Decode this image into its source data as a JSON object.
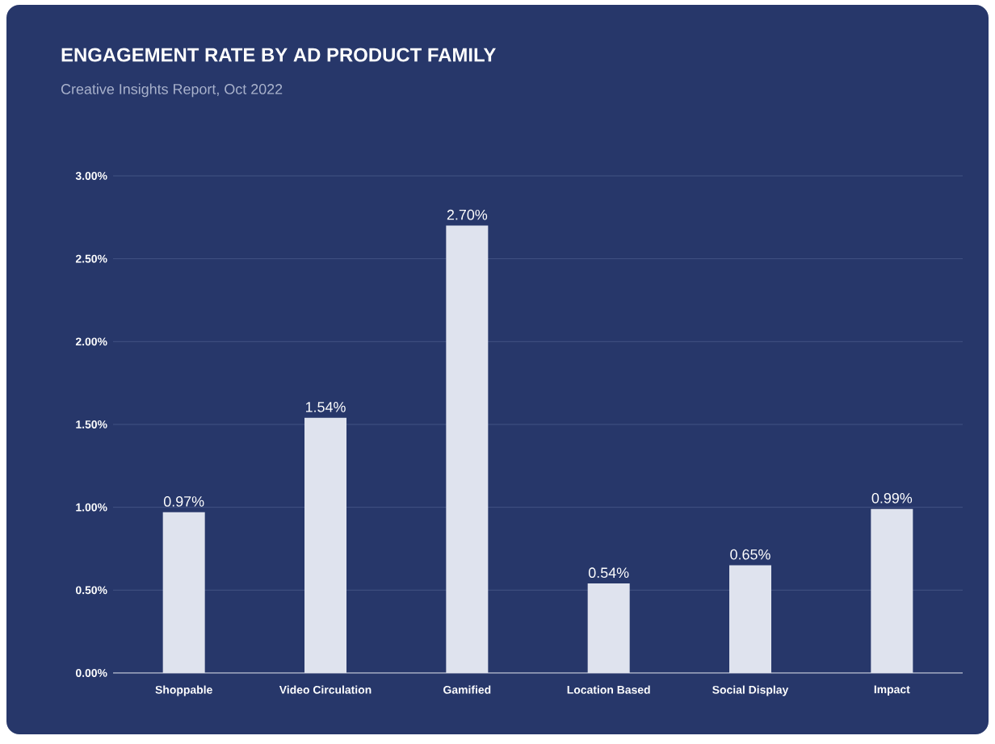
{
  "chart_data": {
    "type": "bar",
    "title": "ENGAGEMENT RATE BY AD PRODUCT FAMILY",
    "subtitle": "Creative Insights Report, Oct 2022",
    "categories": [
      "Shoppable",
      "Video Circulation",
      "Gamified",
      "Location Based",
      "Social Display",
      "Impact"
    ],
    "values": [
      0.97,
      1.54,
      2.7,
      0.54,
      0.65,
      0.99
    ],
    "value_labels": [
      "0.97%",
      "1.54%",
      "2.70%",
      "0.54%",
      "0.65%",
      "0.99%"
    ],
    "color": "#dfe3ee",
    "ylim": [
      0,
      3
    ],
    "yticks": [
      {
        "value": 0,
        "label": "0.00%"
      },
      {
        "value": 0.5,
        "label": "0.50%"
      },
      {
        "value": 1,
        "label": "1.00%"
      },
      {
        "value": 1.5,
        "label": "1.50%"
      },
      {
        "value": 2,
        "label": "2.00%"
      },
      {
        "value": 2.5,
        "label": "2.50%"
      },
      {
        "value": 3,
        "label": "3.00%"
      }
    ],
    "grid": "y"
  }
}
